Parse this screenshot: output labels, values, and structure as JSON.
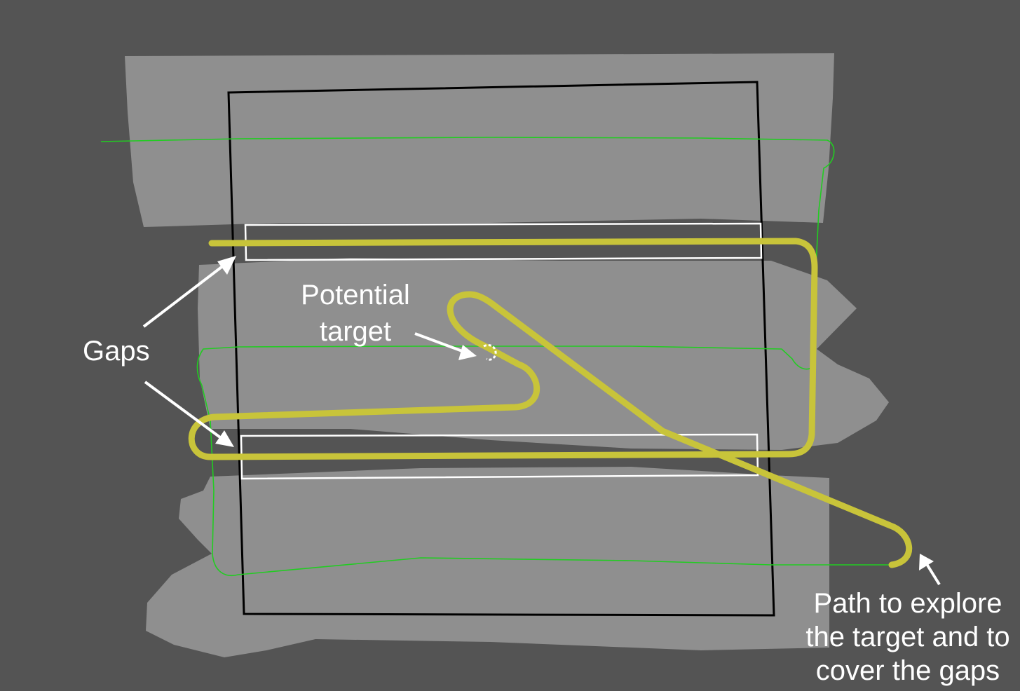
{
  "annotations": {
    "gaps": "Gaps",
    "target_line1": "Potential",
    "target_line2": "target",
    "path_line1": "Path to explore",
    "path_line2": "the target and to",
    "path_line3": "cover the gaps"
  },
  "colors": {
    "background": "#545454",
    "covered_area": "#8f8f8f",
    "survey_boundary": "#000000",
    "gap_box": "#ffffff",
    "vehicle_track": "#22cc22",
    "planned_path": "#c8c43a",
    "annotation": "#ffffff"
  }
}
